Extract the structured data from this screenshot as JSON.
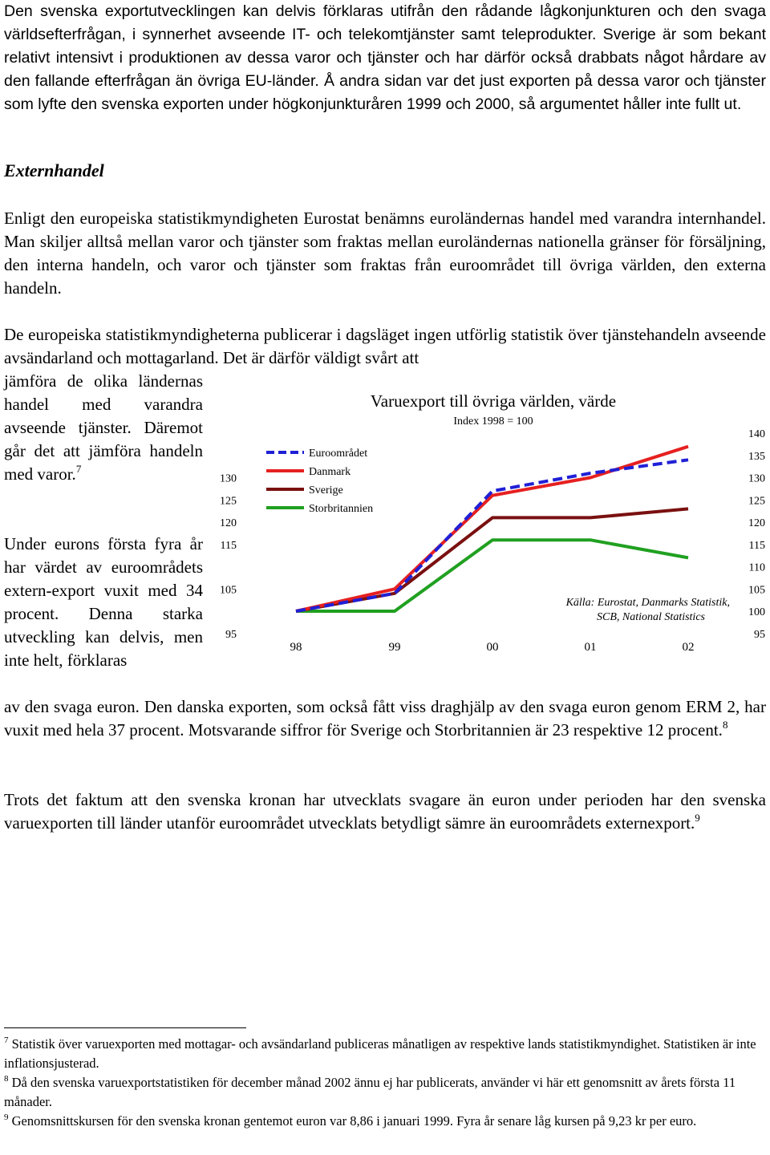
{
  "intro_text": "Den svenska exportutvecklingen kan delvis förklaras utifrån den rådande lågkonjunkturen och den svaga världsefterfrågan, i synnerhet avseende IT- och telekomtjänster samt teleprodukter. Sverige är som bekant relativt intensivt i produktionen av dessa varor och tjänster och har därför också drabbats något hårdare av den fallande efterfrågan än övriga EU-länder. Å andra sidan var det just exporten på dessa varor och tjänster som lyfte den svenska exporten under högkonjunkturåren 1999 och 2000, så argumentet håller inte fullt ut.",
  "heading": "Externhandel",
  "para1": "Enligt den europeiska statistikmyndigheten Eurostat benämns euroländernas handel med varandra internhandel. Man skiljer alltså mellan varor och tjänster som fraktas mellan euroländernas nationella gränser för försäljning, den interna handeln, och varor och tjänster som fraktas från euroområdet till övriga världen, den externa handeln.",
  "para2_top": "De europeiska statistikmyndigheterna publicerar i dagsläget ingen utförlig statistik över tjänstehandeln avseende avsändarland och mottagarland. Det är därför väldigt svårt att",
  "para2_side": "jämföra de olika ländernas handel med varandra avseende tjänster. Däremot går det att jämföra handeln med varor.",
  "para2_footref": "7",
  "para3_side": "Under eurons första fyra år har värdet av euroområdets extern-export vuxit med 34 procent. Denna starka utveckling kan delvis, men inte helt, förklaras",
  "para3_rest": "av den svaga euron. Den danska exporten, som också fått viss draghjälp av den svaga euron genom ERM 2, har vuxit med hela 37 procent. Motsvarande siffror för Sverige och Storbritannien är 23 respektive 12 procent.",
  "para3_footref": "8",
  "para4": "Trots det faktum att den svenska kronan har utvecklats svagare än euron under perioden har den svenska varuexporten till länder utanför euroområdet utvecklats betydligt sämre än euroområdets externexport.",
  "para4_footref": "9",
  "footnotes": [
    {
      "num": "7",
      "text": "Statistik över varuexporten med mottagar- och avsändarland publiceras månatligen av respektive lands statistikmyndighet. Statistiken är inte inflationsjusterad."
    },
    {
      "num": "8",
      "text": "Då den svenska varuexportstatistiken för december månad 2002 ännu ej har publicerats, använder vi här ett genomsnitt av årets första 11 månader."
    },
    {
      "num": "9",
      "text": "Genomsnittskursen för den svenska kronan gentemot euron var 8,86 i januari 1999. Fyra år senare låg kursen på 9,23 kr per euro."
    }
  ],
  "chart_data": {
    "type": "line",
    "title": "Varuexport till övriga världen, värde",
    "subtitle": "Index 1998 = 100",
    "source": [
      "Källa: Eurostat, Danmarks Statistik,",
      "SCB, National Statistics"
    ],
    "categories": [
      "98",
      "99",
      "00",
      "01",
      "02"
    ],
    "left_ticks": [
      "130",
      "125",
      "120",
      "115",
      "105",
      "95"
    ],
    "right_ticks": [
      "140",
      "135",
      "130",
      "125",
      "120",
      "115",
      "110",
      "105",
      "100",
      "95"
    ],
    "ylim": [
      95,
      140
    ],
    "grid": false,
    "legend_position": "top-left",
    "series": [
      {
        "name": "Euroområdet",
        "values": [
          100,
          104,
          127,
          131,
          134
        ],
        "color": "#1f1fd6",
        "dashed": true
      },
      {
        "name": "Danmark",
        "values": [
          100,
          105,
          126,
          130,
          137
        ],
        "color": "#e62020",
        "dashed": false
      },
      {
        "name": "Sverige",
        "values": [
          100,
          104,
          121,
          121,
          123
        ],
        "color": "#7a1010",
        "dashed": false
      },
      {
        "name": "Storbritannien",
        "values": [
          100,
          100,
          116,
          116,
          112
        ],
        "color": "#20a020",
        "dashed": false
      }
    ]
  }
}
